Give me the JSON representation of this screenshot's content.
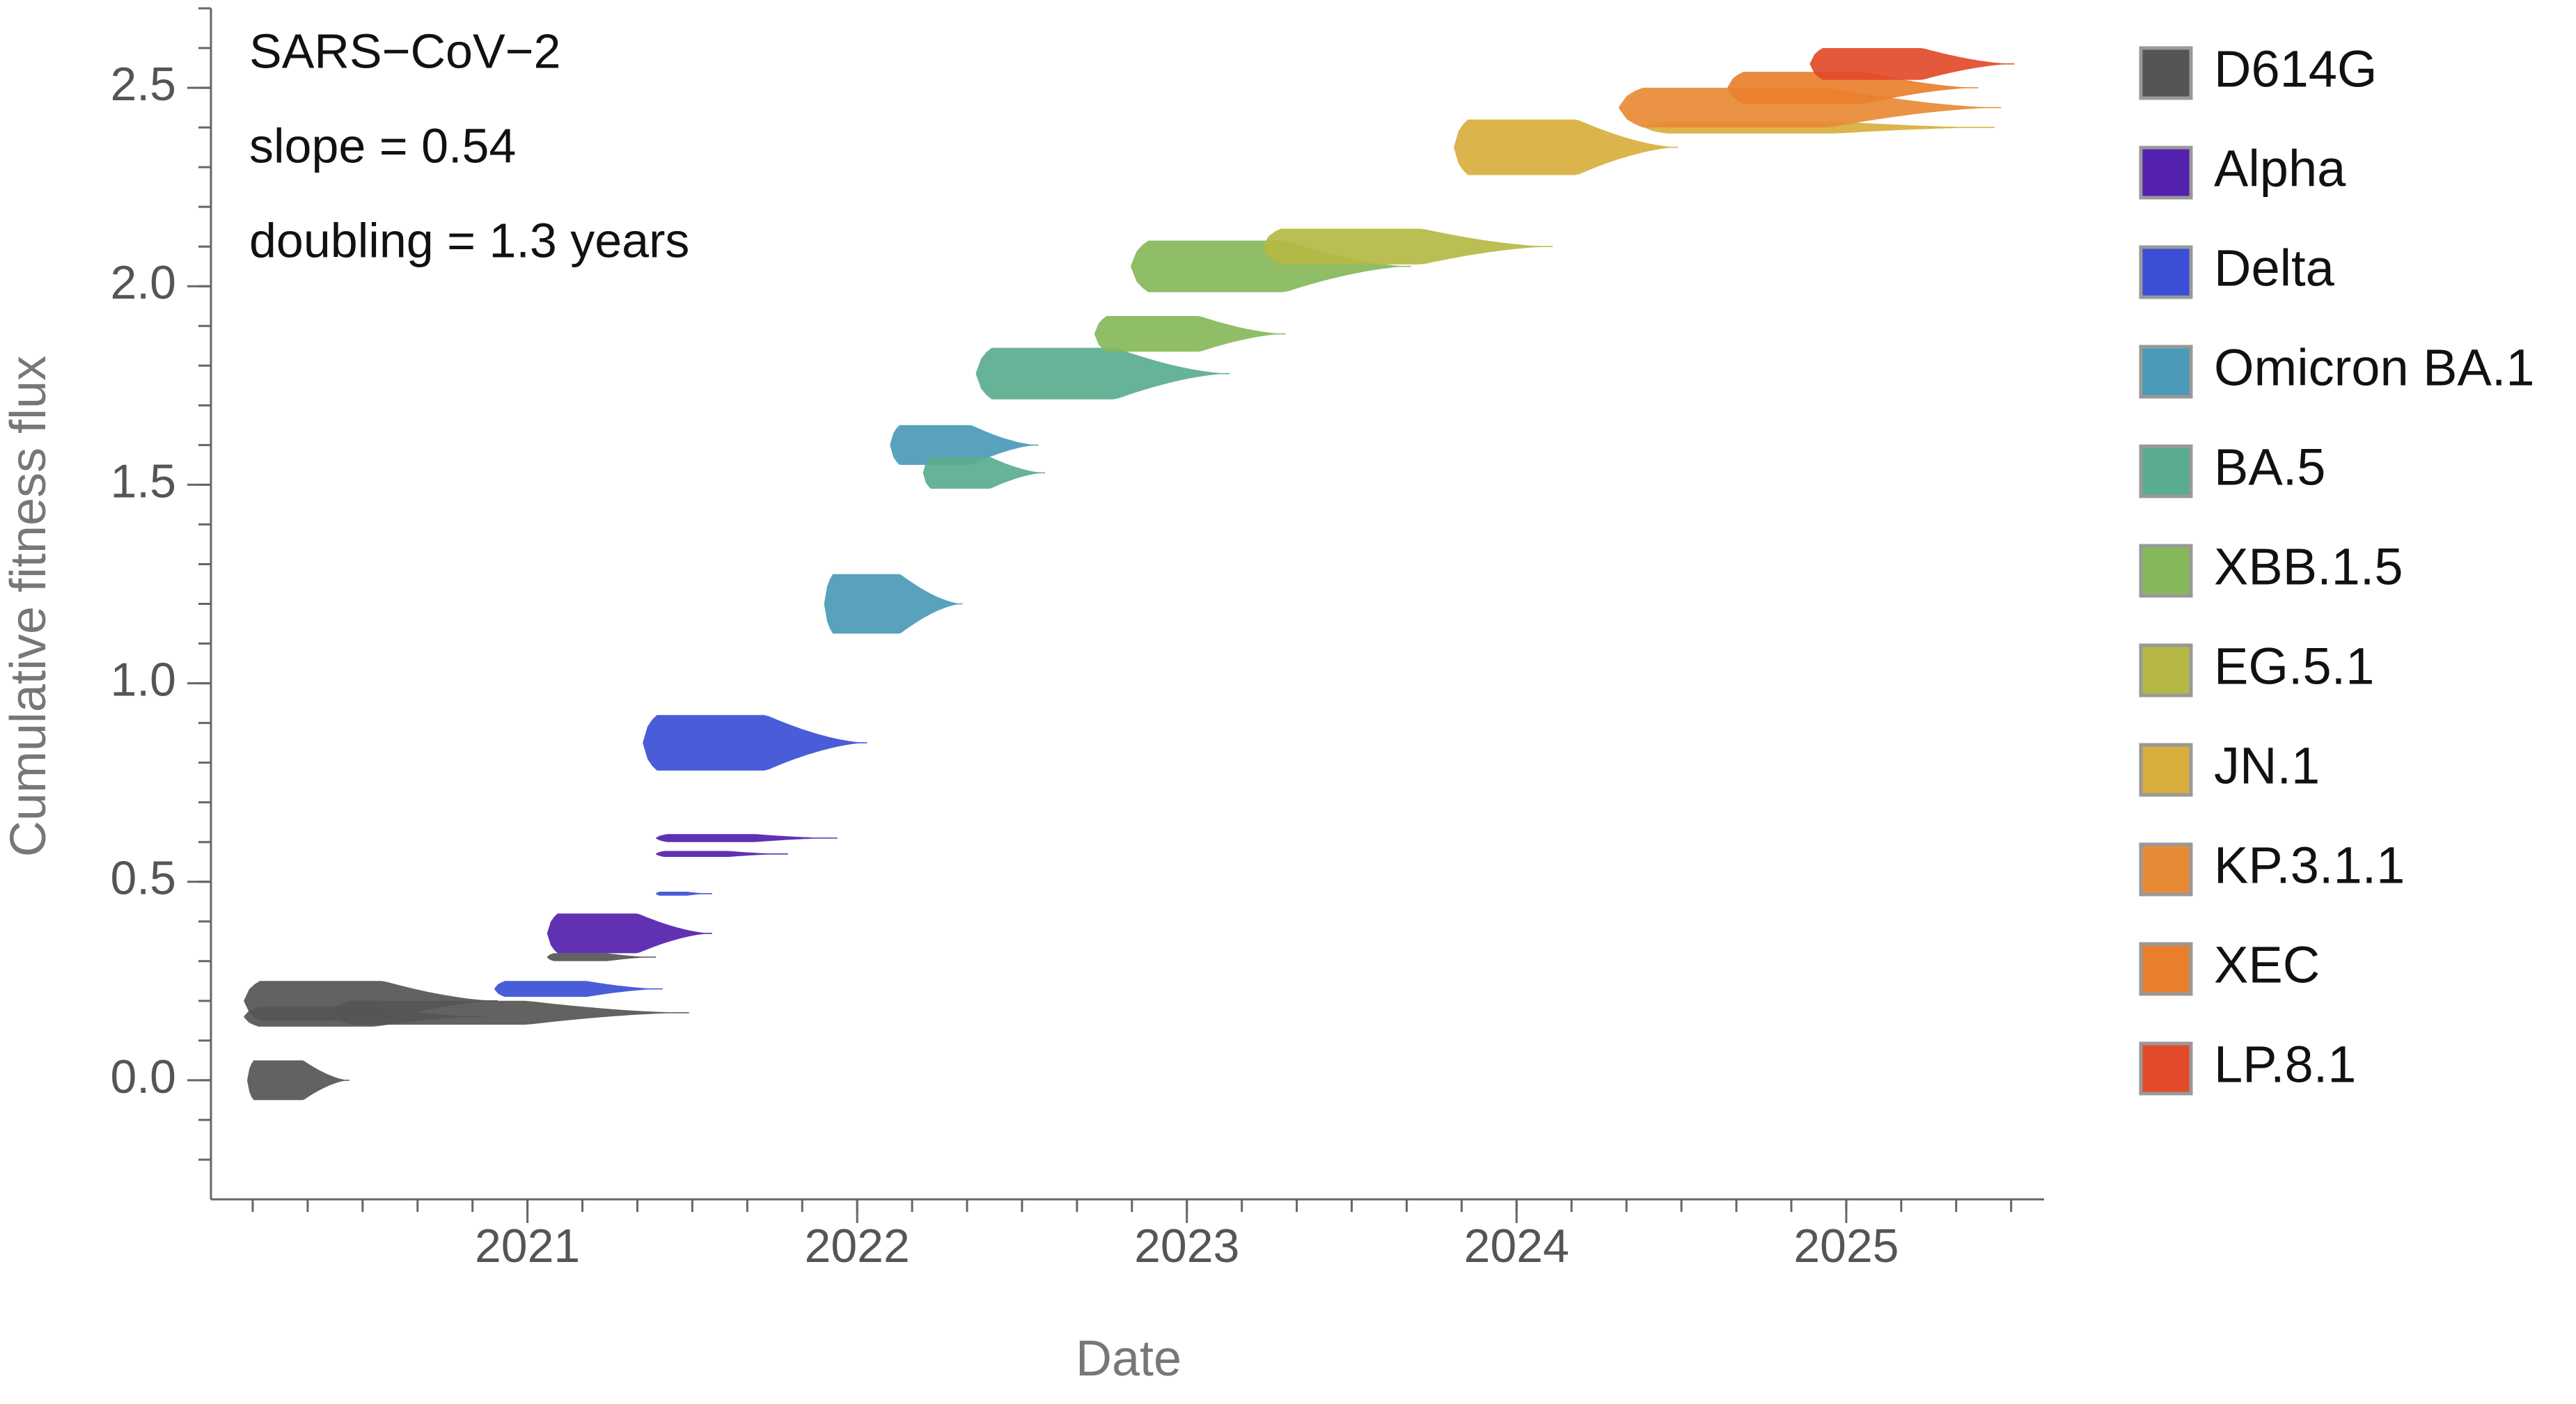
{
  "chart_data": {
    "type": "blob",
    "annotations": [
      "SARS−CoV−2",
      "slope = 0.54",
      "doubling = 1.3 years"
    ],
    "x_label": "Date",
    "y_label": "Cumulative fitness flux",
    "xlim": [
      2020.04,
      2025.6
    ],
    "xticks": [
      2021,
      2022,
      2023,
      2024,
      2025
    ],
    "ylim": [
      -0.3,
      2.7
    ],
    "yticks": [
      {
        "value": 0,
        "label": "0.0"
      },
      0.5,
      {
        "value": 1,
        "label": "1.0"
      },
      1.5,
      {
        "value": 2,
        "label": "2.0"
      },
      2.5
    ],
    "series": [
      {
        "name": "D614G",
        "color": "#555555",
        "values": [
          0,
          0.2,
          0.16,
          0.17,
          0.31
        ],
        "x": [
          2020.15,
          2020.14,
          2020.14,
          2020.4,
          2021.06
        ],
        "x_end": [
          2020.46,
          2020.91,
          2020.86,
          2021.49,
          2021.39
        ],
        "spread": [
          0.1,
          0.1,
          0.05,
          0.06,
          0.02
        ]
      },
      {
        "name": "Alpha",
        "color": "#5420ae",
        "values": [
          0.37,
          0.61,
          0.57
        ],
        "x": [
          2021.06,
          2021.39,
          2021.39
        ],
        "x_end": [
          2021.56,
          2021.94,
          2021.79
        ],
        "spread": [
          0.1,
          0.02,
          0.015
        ]
      },
      {
        "name": "Delta",
        "color": "#3a4fd6",
        "values": [
          0.85,
          0.23,
          0.47
        ],
        "x": [
          2021.35,
          2020.9,
          2021.39
        ],
        "x_end": [
          2022.03,
          2021.41,
          2021.56
        ],
        "spread": [
          0.14,
          0.04,
          0.01
        ]
      },
      {
        "name": "Omicron BA.1",
        "color": "#4a9ab8",
        "values": [
          1.2,
          1.6
        ],
        "x": [
          2021.9,
          2022.1
        ],
        "x_end": [
          2022.32,
          2022.55
        ],
        "spread": [
          0.15,
          0.1
        ]
      },
      {
        "name": "BA.5",
        "color": "#5aac8e",
        "values": [
          1.53,
          1.78
        ],
        "x": [
          2022.2,
          2022.36
        ],
        "x_end": [
          2022.57,
          2023.13
        ],
        "spread": [
          0.08,
          0.13
        ]
      },
      {
        "name": "XBB.1.5",
        "color": "#85b85a",
        "values": [
          1.88,
          2.05
        ],
        "x": [
          2022.72,
          2022.83
        ],
        "x_end": [
          2023.3,
          2023.68
        ],
        "spread": [
          0.09,
          0.13
        ]
      },
      {
        "name": "EG.5.1",
        "color": "#b5b844",
        "values": [
          2.1
        ],
        "x": [
          2023.23
        ],
        "x_end": [
          2024.11
        ],
        "spread": [
          0.09
        ]
      },
      {
        "name": "JN.1",
        "color": "#d8ae3c",
        "values": [
          2.35,
          2.4
        ],
        "x": [
          2023.81,
          2024.39
        ],
        "x_end": [
          2024.49,
          2025.45
        ],
        "spread": [
          0.14,
          0.03
        ]
      },
      {
        "name": "KP.3.1.1",
        "color": "#e88a35",
        "values": [
          2.45
        ],
        "x": [
          2024.31
        ],
        "x_end": [
          2025.47
        ],
        "spread": [
          0.1
        ]
      },
      {
        "name": "XEC",
        "color": "#e97f2c",
        "values": [
          2.5
        ],
        "x": [
          2024.64
        ],
        "x_end": [
          2025.4
        ],
        "spread": [
          0.08
        ]
      },
      {
        "name": "LP.8.1",
        "color": "#e24a2a",
        "values": [
          2.56
        ],
        "x": [
          2024.89
        ],
        "x_end": [
          2025.51
        ],
        "spread": [
          0.08
        ]
      }
    ]
  }
}
